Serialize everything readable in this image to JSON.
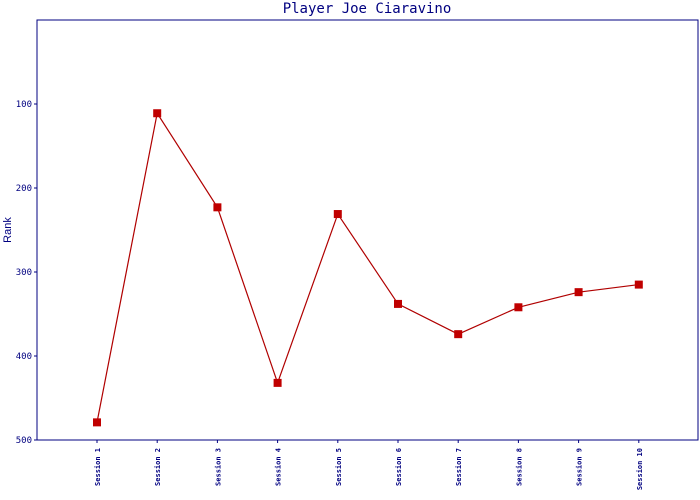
{
  "chart_data": {
    "type": "line",
    "title": "Player Joe Ciaravino",
    "xlabel": "",
    "ylabel": "Rank",
    "categories": [
      "Session 1",
      "Session 2",
      "Session 3",
      "Session 4",
      "Session 5",
      "Session 6",
      "Session 7",
      "Session 8",
      "Session 9",
      "Session 10"
    ],
    "series": [
      {
        "values": [
          479,
          111,
          223,
          432,
          231,
          338,
          374,
          342,
          324,
          315
        ]
      }
    ],
    "ylim": [
      500,
      0
    ],
    "y_inverted": true,
    "yticks": [
      100,
      200,
      300,
      400,
      500
    ],
    "grid": false,
    "legend": "none",
    "colors": {
      "axis": "#000080",
      "line": "#b00000",
      "marker": "#c00000",
      "background": "#ffffff"
    }
  }
}
